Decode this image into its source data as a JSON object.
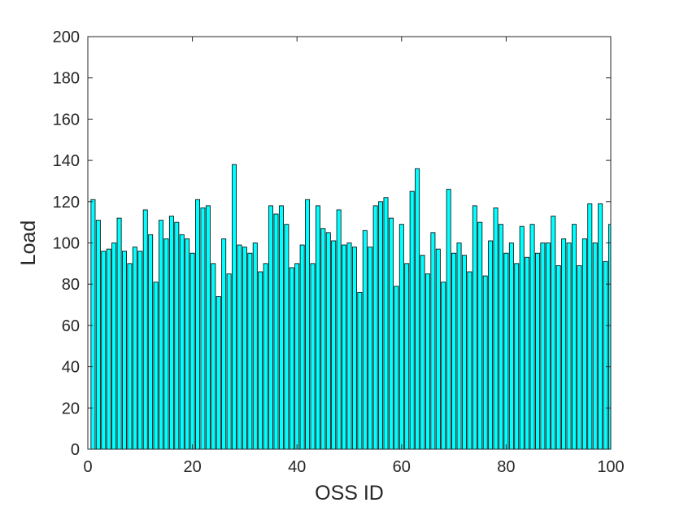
{
  "chart_data": {
    "type": "bar",
    "xlabel": "OSS ID",
    "ylabel": "Load",
    "xlim": [
      0,
      100
    ],
    "ylim": [
      0,
      200
    ],
    "xticks": [
      0,
      20,
      40,
      60,
      80,
      100
    ],
    "yticks": [
      0,
      20,
      40,
      60,
      80,
      100,
      120,
      140,
      160,
      180,
      200
    ],
    "grid": false,
    "bar_color": "#00ffff",
    "edge_color": "#000000",
    "x": [
      1,
      2,
      3,
      4,
      5,
      6,
      7,
      8,
      9,
      10,
      11,
      12,
      13,
      14,
      15,
      16,
      17,
      18,
      19,
      20,
      21,
      22,
      23,
      24,
      25,
      26,
      27,
      28,
      29,
      30,
      31,
      32,
      33,
      34,
      35,
      36,
      37,
      38,
      39,
      40,
      41,
      42,
      43,
      44,
      45,
      46,
      47,
      48,
      49,
      50,
      51,
      52,
      53,
      54,
      55,
      56,
      57,
      58,
      59,
      60,
      61,
      62,
      63,
      64,
      65,
      66,
      67,
      68,
      69,
      70,
      71,
      72,
      73,
      74,
      75,
      76,
      77,
      78,
      79,
      80,
      81,
      82,
      83,
      84,
      85,
      86,
      87,
      88,
      89,
      90,
      91,
      92,
      93,
      94,
      95,
      96,
      97,
      98,
      99,
      100
    ],
    "values": [
      121,
      111,
      96,
      97,
      100,
      112,
      96,
      90,
      98,
      96,
      116,
      104,
      81,
      111,
      102,
      113,
      110,
      104,
      102,
      95,
      121,
      117,
      118,
      90,
      74,
      102,
      85,
      138,
      99,
      98,
      95,
      100,
      86,
      90,
      118,
      114,
      118,
      109,
      88,
      90,
      99,
      121,
      90,
      118,
      107,
      105,
      101,
      116,
      99,
      100,
      98,
      76,
      106,
      98,
      118,
      120,
      122,
      112,
      79,
      109,
      90,
      125,
      136,
      94,
      85,
      105,
      97,
      81,
      126,
      95,
      100,
      94,
      86,
      118,
      110,
      84,
      101,
      117,
      109,
      95,
      100,
      90,
      108,
      93,
      109,
      95,
      100,
      100,
      113,
      89,
      102,
      100,
      109,
      89,
      102,
      119,
      100,
      119,
      91,
      109
    ]
  }
}
